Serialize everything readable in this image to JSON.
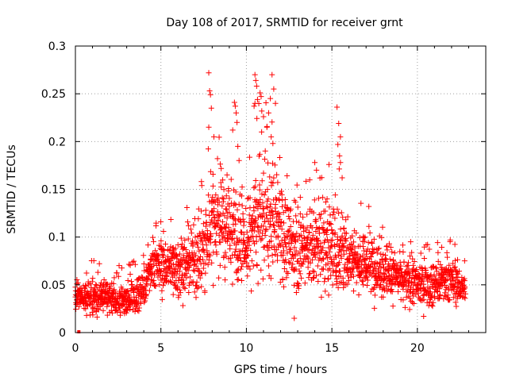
{
  "chart_data": {
    "type": "scatter",
    "title": "Day 108 of 2017, SRMTID for receiver grnt",
    "xlabel": "GPS time / hours",
    "ylabel": "SRMTID / TECUs",
    "xlim": [
      0,
      24
    ],
    "ylim": [
      0,
      0.3
    ],
    "x_ticks": [
      0,
      5,
      10,
      15,
      20
    ],
    "x_tick_labels": [
      "0",
      "5",
      "10",
      "15",
      "20"
    ],
    "y_ticks": [
      0,
      0.05,
      0.1,
      0.15,
      0.2,
      0.25,
      0.3
    ],
    "y_tick_labels": [
      "0",
      "0.05",
      "0.1",
      "0.15",
      "0.2",
      "0.25",
      "0.3"
    ],
    "grid": true,
    "marker": "+",
    "color": "#ff0000",
    "series": [
      {
        "name": "SRMTID",
        "envelope": [
          {
            "x": 0.0,
            "low": 0.015,
            "mid": 0.035,
            "high": 0.06
          },
          {
            "x": 1.0,
            "low": 0.015,
            "mid": 0.04,
            "high": 0.07
          },
          {
            "x": 2.0,
            "low": 0.015,
            "mid": 0.035,
            "high": 0.065
          },
          {
            "x": 3.0,
            "low": 0.015,
            "mid": 0.035,
            "high": 0.065
          },
          {
            "x": 4.0,
            "low": 0.02,
            "mid": 0.045,
            "high": 0.075
          },
          {
            "x": 4.5,
            "low": 0.04,
            "mid": 0.07,
            "high": 0.105
          },
          {
            "x": 5.5,
            "low": 0.025,
            "mid": 0.07,
            "high": 0.11
          },
          {
            "x": 6.5,
            "low": 0.025,
            "mid": 0.07,
            "high": 0.12
          },
          {
            "x": 7.5,
            "low": 0.035,
            "mid": 0.085,
            "high": 0.15
          },
          {
            "x": 8.0,
            "low": 0.05,
            "mid": 0.12,
            "high": 0.2
          },
          {
            "x": 9.0,
            "low": 0.05,
            "mid": 0.115,
            "high": 0.19
          },
          {
            "x": 10.0,
            "low": 0.035,
            "mid": 0.09,
            "high": 0.15
          },
          {
            "x": 10.8,
            "low": 0.05,
            "mid": 0.13,
            "high": 0.23
          },
          {
            "x": 11.8,
            "low": 0.05,
            "mid": 0.115,
            "high": 0.21
          },
          {
            "x": 12.5,
            "low": 0.03,
            "mid": 0.09,
            "high": 0.14
          },
          {
            "x": 14.0,
            "low": 0.03,
            "mid": 0.09,
            "high": 0.15
          },
          {
            "x": 15.3,
            "low": 0.03,
            "mid": 0.09,
            "high": 0.17
          },
          {
            "x": 16.0,
            "low": 0.035,
            "mid": 0.08,
            "high": 0.13
          },
          {
            "x": 17.5,
            "low": 0.03,
            "mid": 0.07,
            "high": 0.12
          },
          {
            "x": 19.0,
            "low": 0.02,
            "mid": 0.055,
            "high": 0.09
          },
          {
            "x": 20.5,
            "low": 0.02,
            "mid": 0.05,
            "high": 0.085
          },
          {
            "x": 22.0,
            "low": 0.025,
            "mid": 0.055,
            "high": 0.09
          },
          {
            "x": 22.8,
            "low": 0.025,
            "mid": 0.045,
            "high": 0.07
          }
        ],
        "spikes": [
          [
            7.8,
            0.272
          ],
          [
            7.85,
            0.253
          ],
          [
            7.9,
            0.249
          ],
          [
            7.95,
            0.235
          ],
          [
            7.8,
            0.215
          ],
          [
            8.1,
            0.205
          ],
          [
            9.3,
            0.241
          ],
          [
            9.35,
            0.237
          ],
          [
            9.4,
            0.23
          ],
          [
            9.45,
            0.22
          ],
          [
            9.2,
            0.212
          ],
          [
            9.5,
            0.195
          ],
          [
            10.5,
            0.27
          ],
          [
            10.55,
            0.264
          ],
          [
            10.6,
            0.258
          ],
          [
            10.5,
            0.24
          ],
          [
            10.45,
            0.237
          ],
          [
            10.65,
            0.244
          ],
          [
            10.8,
            0.251
          ],
          [
            10.9,
            0.232
          ],
          [
            11.0,
            0.226
          ],
          [
            11.2,
            0.215
          ],
          [
            11.3,
            0.23
          ],
          [
            11.4,
            0.245
          ],
          [
            11.5,
            0.27
          ],
          [
            11.6,
            0.255
          ],
          [
            11.7,
            0.24
          ],
          [
            11.45,
            0.205
          ],
          [
            11.55,
            0.198
          ],
          [
            14.0,
            0.178
          ],
          [
            14.1,
            0.17
          ],
          [
            15.3,
            0.236
          ],
          [
            15.4,
            0.219
          ],
          [
            15.5,
            0.205
          ],
          [
            15.35,
            0.197
          ],
          [
            15.45,
            0.185
          ],
          [
            15.5,
            0.178
          ],
          [
            15.6,
            0.162
          ],
          [
            12.8,
            0.015
          ]
        ],
        "zero_point": [
          0.2,
          0.0
        ]
      }
    ]
  }
}
